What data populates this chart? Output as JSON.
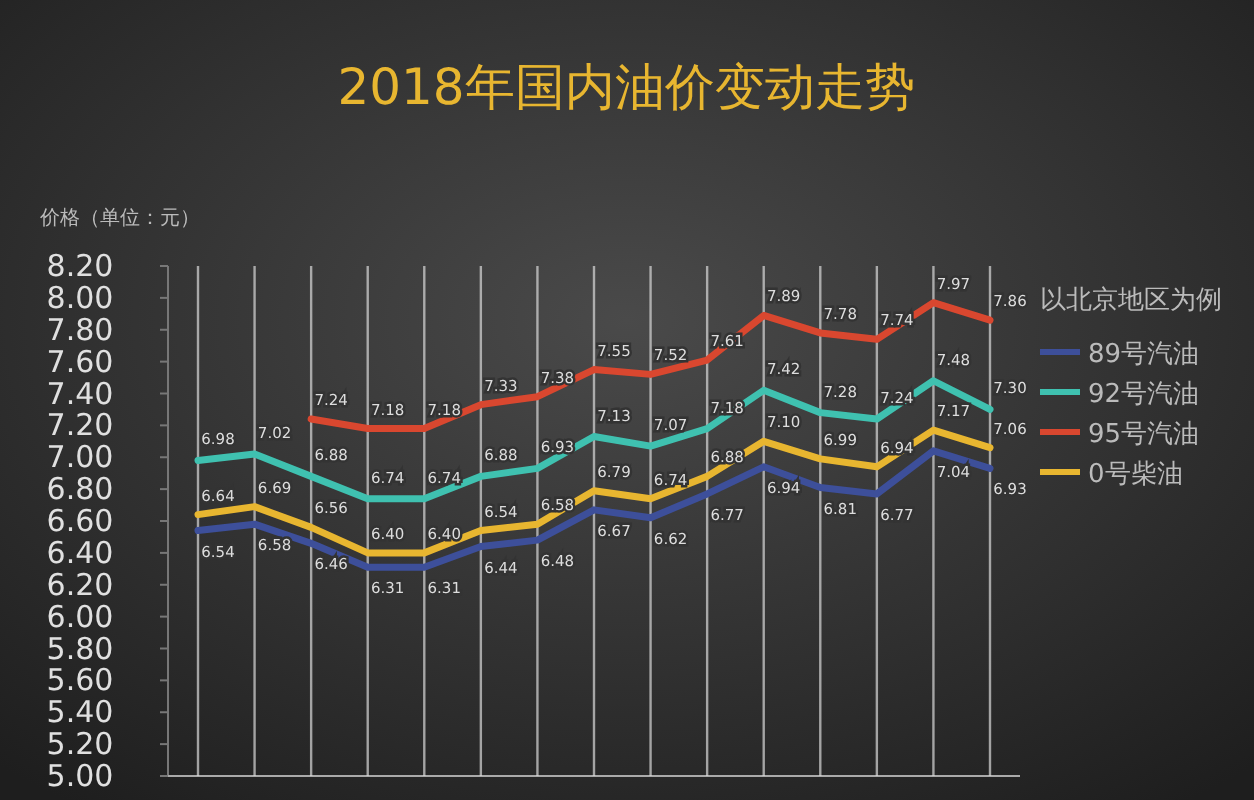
{
  "chart_data": {
    "type": "line",
    "title": "2018年国内油价变动走势",
    "ylabel": "价格（单位：元）",
    "legend_title": "以北京地区为例",
    "categories": [
      null,
      null,
      null,
      null,
      null,
      null,
      null,
      null,
      null,
      null,
      null,
      null,
      null,
      null,
      null
    ],
    "ylim": [
      5,
      8.2
    ],
    "yticks": [
      {
        "value": 5,
        "label": "5.00"
      },
      {
        "value": 5.2,
        "label": "5.20"
      },
      {
        "value": 5.4,
        "label": "5.40"
      },
      {
        "value": 5.6,
        "label": "5.60"
      },
      {
        "value": 5.8,
        "label": "5.80"
      },
      {
        "value": 6,
        "label": "6.00"
      },
      {
        "value": 6.2,
        "label": "6.20"
      },
      {
        "value": 6.4,
        "label": "6.40"
      },
      {
        "value": 6.6,
        "label": "6.60"
      },
      {
        "value": 6.8,
        "label": "6.80"
      },
      {
        "value": 7,
        "label": "7.00"
      },
      {
        "value": 7.2,
        "label": "7.20"
      },
      {
        "value": 7.4,
        "label": "7.40"
      },
      {
        "value": 7.6,
        "label": "7.60"
      },
      {
        "value": 7.8,
        "label": "7.80"
      },
      {
        "value": 8,
        "label": "8.00"
      },
      {
        "value": 8.2,
        "label": "8.20"
      }
    ],
    "grid": "x",
    "legend": "right",
    "marker": "none",
    "line_style": "solid",
    "series": [
      {
        "name": "89号汽油",
        "color": "#3d4f9a",
        "values": [
          6.54,
          6.58,
          6.46,
          6.31,
          6.31,
          6.44,
          6.48,
          6.67,
          6.62,
          6.77,
          6.94,
          6.81,
          6.77,
          7.04,
          6.93
        ],
        "value_labels": [
          "6.54",
          "6.58",
          "6.46",
          "6.31",
          "6.31",
          "6.44",
          "6.48",
          "6.67",
          "6.62",
          "6.77",
          "6.94",
          "6.81",
          "6.77",
          "7.04",
          "6.93"
        ]
      },
      {
        "name": "92号汽油",
        "color": "#3fc1b0",
        "values": [
          6.98,
          7.02,
          6.88,
          6.74,
          6.74,
          6.88,
          6.93,
          7.13,
          7.07,
          7.18,
          7.42,
          7.28,
          7.24,
          7.48,
          7.3
        ],
        "value_labels": [
          "6.98",
          "7.02",
          "6.88",
          "6.74",
          "6.74",
          "6.88",
          "6.93",
          "7.13",
          "7.07",
          "7.18",
          "7.42",
          "7.28",
          "7.24",
          "7.48",
          "7.30"
        ]
      },
      {
        "name": "95号汽油",
        "color": "#d9472f",
        "values": [
          null,
          null,
          7.24,
          7.18,
          7.18,
          7.33,
          7.38,
          7.55,
          7.52,
          7.61,
          7.89,
          7.78,
          7.74,
          7.97,
          7.86
        ],
        "value_labels": [
          null,
          null,
          "7.24",
          "7.18",
          "7.18",
          "7.33",
          "7.38",
          "7.55",
          "7.52",
          "7.61",
          "7.89",
          "7.78",
          "7.74",
          "7.97",
          "7.86"
        ]
      },
      {
        "name": "0号柴油",
        "color": "#e8b630",
        "values": [
          6.64,
          6.69,
          6.56,
          6.4,
          6.4,
          6.54,
          6.58,
          6.79,
          6.74,
          6.88,
          7.1,
          6.99,
          6.94,
          7.17,
          7.06
        ],
        "value_labels": [
          "6.64",
          "6.69",
          "6.56",
          "6.40",
          "6.40",
          "6.54",
          "6.58",
          "6.79",
          "6.74",
          "6.88",
          "7.10",
          "6.99",
          "6.94",
          "7.17",
          "7.06"
        ]
      }
    ]
  }
}
